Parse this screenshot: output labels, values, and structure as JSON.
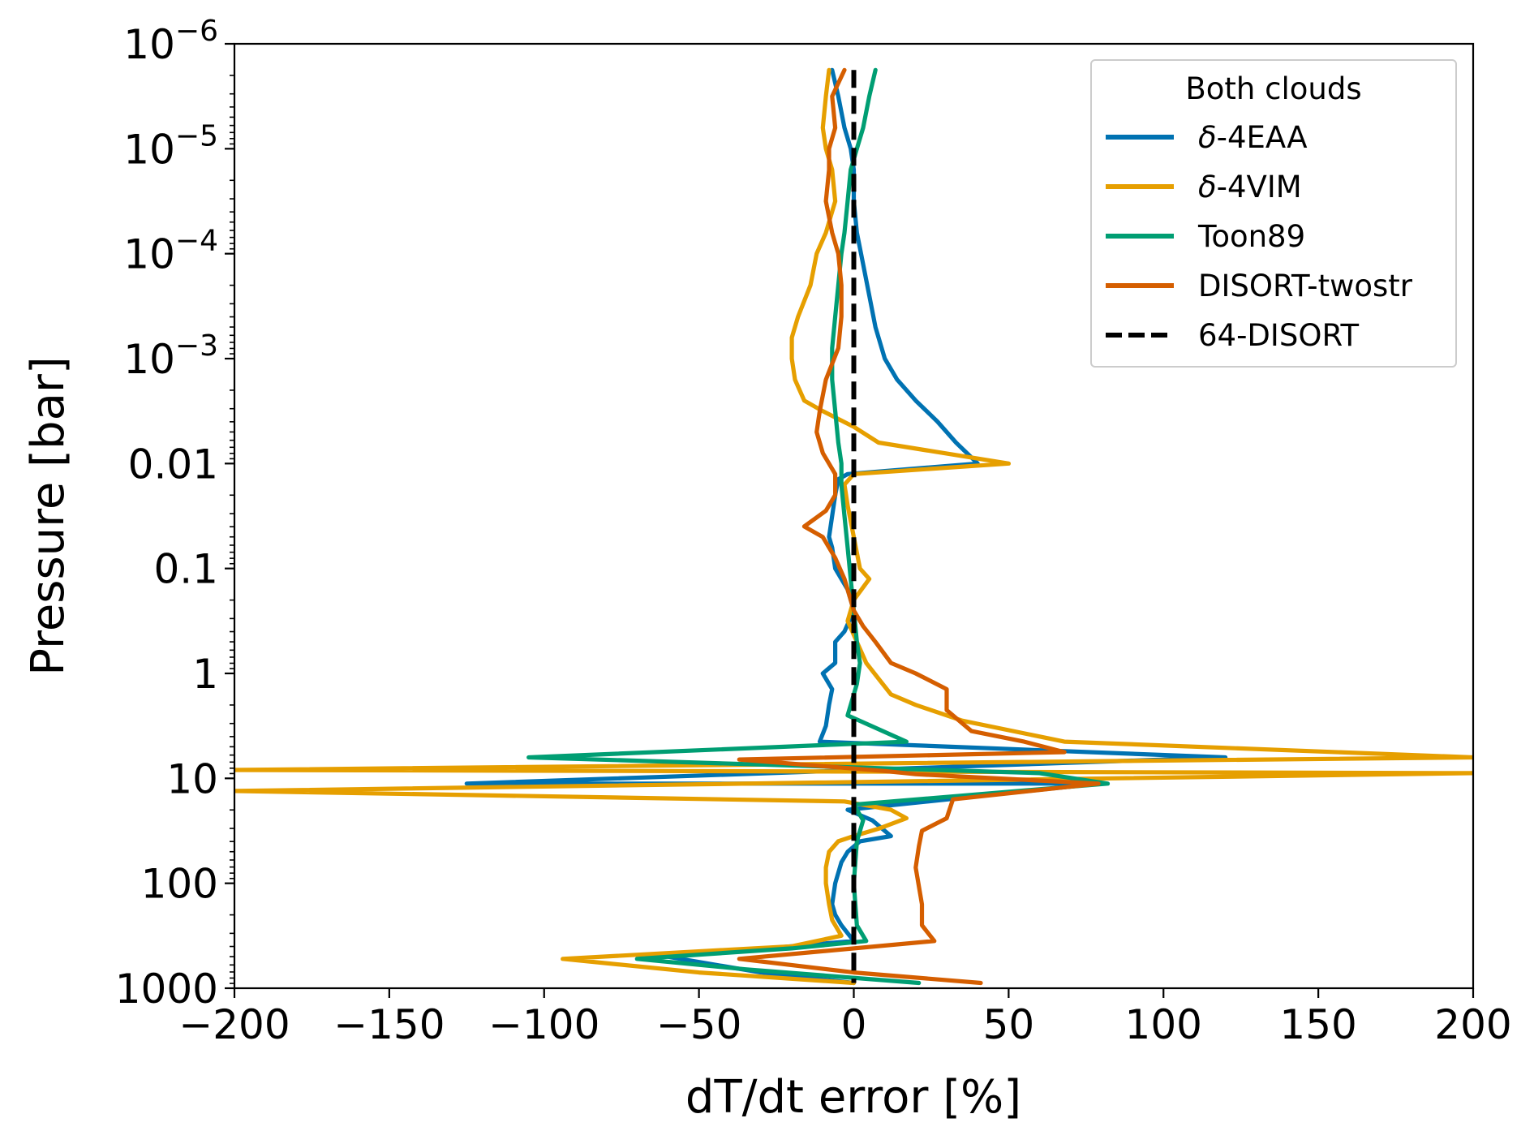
{
  "chart_data": {
    "type": "line",
    "xlabel": "dT/dt error [%]",
    "ylabel": "Pressure [bar]",
    "xlim": [
      -200,
      200
    ],
    "ylim_log10": [
      -6,
      3
    ],
    "y_scale": "log",
    "y_inverted": true,
    "xticks": [
      -200,
      -150,
      -100,
      -50,
      0,
      50,
      100,
      150,
      200
    ],
    "xtick_labels": [
      "−200",
      "−150",
      "−100",
      "−50",
      "0",
      "50",
      "100",
      "150",
      "200"
    ],
    "yticks_log10": [
      -6,
      -5,
      -4,
      -3,
      -2,
      -1,
      0,
      1,
      2,
      3
    ],
    "ytick_labels": [
      {
        "base": "10",
        "exp": "−6"
      },
      {
        "base": "10",
        "exp": "−5"
      },
      {
        "base": "10",
        "exp": "−4"
      },
      {
        "base": "10",
        "exp": "−3"
      },
      {
        "base": "0.01",
        "exp": ""
      },
      {
        "base": "0.1",
        "exp": ""
      },
      {
        "base": "1",
        "exp": ""
      },
      {
        "base": "10",
        "exp": ""
      },
      {
        "base": "100",
        "exp": ""
      },
      {
        "base": "1000",
        "exp": ""
      }
    ],
    "legend": {
      "title": "Both clouds",
      "position": "upper right",
      "entries": [
        {
          "label": "δ-4EAA",
          "italic_prefix": "δ",
          "rest": "-4EAA",
          "color": "#0072B2",
          "dash": false
        },
        {
          "label": "δ-4VIM",
          "italic_prefix": "δ",
          "rest": "-4VIM",
          "color": "#E69F00",
          "dash": false
        },
        {
          "label": "Toon89",
          "italic_prefix": "",
          "rest": "Toon89",
          "color": "#009E73",
          "dash": false
        },
        {
          "label": "DISORT-twostr",
          "italic_prefix": "",
          "rest": "DISORT-twostr",
          "color": "#D55E00",
          "dash": false
        },
        {
          "label": "64-DISORT",
          "italic_prefix": "",
          "rest": "64-DISORT",
          "color": "#000000",
          "dash": true
        }
      ]
    },
    "series": [
      {
        "name": "δ-4EAA",
        "color": "#0072B2",
        "points": [
          [
            -7,
            -5.75
          ],
          [
            -5,
            -5.5
          ],
          [
            -3,
            -5.2
          ],
          [
            -1,
            -5.0
          ],
          [
            0,
            -4.8
          ],
          [
            0,
            -4.5
          ],
          [
            1,
            -4.2
          ],
          [
            3,
            -3.9
          ],
          [
            5,
            -3.6
          ],
          [
            7,
            -3.3
          ],
          [
            10,
            -3.0
          ],
          [
            14,
            -2.8
          ],
          [
            20,
            -2.6
          ],
          [
            27,
            -2.4
          ],
          [
            33,
            -2.2
          ],
          [
            40,
            -2.0
          ],
          [
            -2,
            -1.9
          ],
          [
            -5,
            -1.85
          ],
          [
            -6,
            -1.7
          ],
          [
            -7,
            -1.5
          ],
          [
            -8,
            -1.3
          ],
          [
            -7,
            -1.2
          ],
          [
            -6,
            -1.0
          ],
          [
            -4,
            -0.9
          ],
          [
            -2,
            -0.8
          ],
          [
            0,
            -0.6
          ],
          [
            -3,
            -0.4
          ],
          [
            -6,
            -0.3
          ],
          [
            -6,
            -0.1
          ],
          [
            -10,
            0.0
          ],
          [
            -7,
            0.15
          ],
          [
            -8,
            0.3
          ],
          [
            -9,
            0.5
          ],
          [
            -11,
            0.65
          ],
          [
            120,
            0.8
          ],
          [
            -125,
            1.05
          ],
          [
            79,
            1.05
          ],
          [
            -2,
            1.3
          ],
          [
            6,
            1.4
          ],
          [
            12,
            1.55
          ],
          [
            2,
            1.6
          ],
          [
            -2,
            1.7
          ],
          [
            -4,
            1.8
          ],
          [
            -6,
            2.0
          ],
          [
            -7,
            2.2
          ],
          [
            -6,
            2.3
          ],
          [
            -4,
            2.4
          ],
          [
            0,
            2.55
          ],
          [
            -60,
            2.7
          ],
          [
            -30,
            2.85
          ],
          [
            0,
            2.95
          ]
        ]
      },
      {
        "name": "δ-4VIM",
        "color": "#E69F00",
        "points": [
          [
            -8,
            -5.75
          ],
          [
            -9,
            -5.5
          ],
          [
            -10,
            -5.2
          ],
          [
            -9,
            -5.0
          ],
          [
            -7,
            -4.8
          ],
          [
            -6,
            -4.5
          ],
          [
            -9,
            -4.2
          ],
          [
            -12,
            -4.0
          ],
          [
            -14,
            -3.7
          ],
          [
            -18,
            -3.4
          ],
          [
            -20,
            -3.2
          ],
          [
            -20,
            -3.0
          ],
          [
            -19,
            -2.8
          ],
          [
            -16,
            -2.6
          ],
          [
            -10,
            -2.5
          ],
          [
            0,
            -2.35
          ],
          [
            8,
            -2.2
          ],
          [
            50,
            -2.0
          ],
          [
            0,
            -1.9
          ],
          [
            -3,
            -1.8
          ],
          [
            -2,
            -1.6
          ],
          [
            0,
            -1.3
          ],
          [
            2,
            -1.0
          ],
          [
            5,
            -0.9
          ],
          [
            0,
            -0.7
          ],
          [
            -2,
            -0.5
          ],
          [
            1,
            -0.3
          ],
          [
            4,
            -0.1
          ],
          [
            8,
            0.05
          ],
          [
            12,
            0.2
          ],
          [
            20,
            0.3
          ],
          [
            35,
            0.45
          ],
          [
            68,
            0.65
          ],
          [
            200,
            0.8
          ],
          [
            -200,
            0.92
          ],
          [
            200,
            0.95
          ],
          [
            -200,
            1.12
          ],
          [
            -3,
            1.22
          ],
          [
            12,
            1.3
          ],
          [
            17,
            1.38
          ],
          [
            8,
            1.48
          ],
          [
            0,
            1.55
          ],
          [
            -5,
            1.6
          ],
          [
            -8,
            1.7
          ],
          [
            -9,
            1.85
          ],
          [
            -9,
            2.0
          ],
          [
            -8,
            2.2
          ],
          [
            -7,
            2.35
          ],
          [
            -4,
            2.5
          ],
          [
            -20,
            2.6
          ],
          [
            -94,
            2.72
          ],
          [
            -50,
            2.85
          ],
          [
            0,
            2.95
          ]
        ]
      },
      {
        "name": "Toon89",
        "color": "#009E73",
        "points": [
          [
            7,
            -5.75
          ],
          [
            5,
            -5.5
          ],
          [
            3,
            -5.2
          ],
          [
            1,
            -5.0
          ],
          [
            -1,
            -4.8
          ],
          [
            -2,
            -4.5
          ],
          [
            -3,
            -4.2
          ],
          [
            -4,
            -4.0
          ],
          [
            -5,
            -3.7
          ],
          [
            -6,
            -3.4
          ],
          [
            -7,
            -3.1
          ],
          [
            -7,
            -2.8
          ],
          [
            -6,
            -2.5
          ],
          [
            -5,
            -2.2
          ],
          [
            -4,
            -2.0
          ],
          [
            -4,
            -1.8
          ],
          [
            -3,
            -1.5
          ],
          [
            -2,
            -1.2
          ],
          [
            -1,
            -0.9
          ],
          [
            0,
            -0.6
          ],
          [
            1,
            -0.3
          ],
          [
            2,
            -0.1
          ],
          [
            1,
            0.1
          ],
          [
            -1,
            0.3
          ],
          [
            -2,
            0.4
          ],
          [
            17,
            0.65
          ],
          [
            -105,
            0.8
          ],
          [
            60,
            0.95
          ],
          [
            82,
            1.05
          ],
          [
            0,
            1.25
          ],
          [
            3,
            1.4
          ],
          [
            1,
            1.6
          ],
          [
            0,
            2.0
          ],
          [
            1,
            2.4
          ],
          [
            4,
            2.55
          ],
          [
            -20,
            2.62
          ],
          [
            -70,
            2.72
          ],
          [
            -35,
            2.82
          ],
          [
            21,
            2.95
          ]
        ]
      },
      {
        "name": "DISORT-twostr",
        "color": "#D55E00",
        "points": [
          [
            -3,
            -5.75
          ],
          [
            -7,
            -5.5
          ],
          [
            -6,
            -5.2
          ],
          [
            -8,
            -5.0
          ],
          [
            -8,
            -4.8
          ],
          [
            -9,
            -4.5
          ],
          [
            -7,
            -4.2
          ],
          [
            -5,
            -4.0
          ],
          [
            -4,
            -3.7
          ],
          [
            -4,
            -3.4
          ],
          [
            -5,
            -3.1
          ],
          [
            -9,
            -2.8
          ],
          [
            -11,
            -2.5
          ],
          [
            -12,
            -2.3
          ],
          [
            -10,
            -2.1
          ],
          [
            -6,
            -1.9
          ],
          [
            -6,
            -1.7
          ],
          [
            -9,
            -1.55
          ],
          [
            -16,
            -1.4
          ],
          [
            -10,
            -1.3
          ],
          [
            -6,
            -1.1
          ],
          [
            -3,
            -0.9
          ],
          [
            0,
            -0.6
          ],
          [
            3,
            -0.45
          ],
          [
            7,
            -0.3
          ],
          [
            12,
            -0.1
          ],
          [
            20,
            0.0
          ],
          [
            30,
            0.15
          ],
          [
            30,
            0.35
          ],
          [
            38,
            0.55
          ],
          [
            55,
            0.65
          ],
          [
            68,
            0.75
          ],
          [
            -37,
            0.82
          ],
          [
            10,
            0.93
          ],
          [
            20,
            0.96
          ],
          [
            79,
            1.05
          ],
          [
            32,
            1.2
          ],
          [
            30,
            1.38
          ],
          [
            22,
            1.5
          ],
          [
            21,
            1.65
          ],
          [
            20,
            1.85
          ],
          [
            22,
            2.2
          ],
          [
            22,
            2.4
          ],
          [
            26,
            2.55
          ],
          [
            -37,
            2.72
          ],
          [
            0,
            2.85
          ],
          [
            41,
            2.95
          ]
        ]
      },
      {
        "name": "64-DISORT",
        "color": "#000000",
        "dash": true,
        "points": [
          [
            0,
            -5.75
          ],
          [
            0,
            2.95
          ]
        ]
      }
    ]
  }
}
